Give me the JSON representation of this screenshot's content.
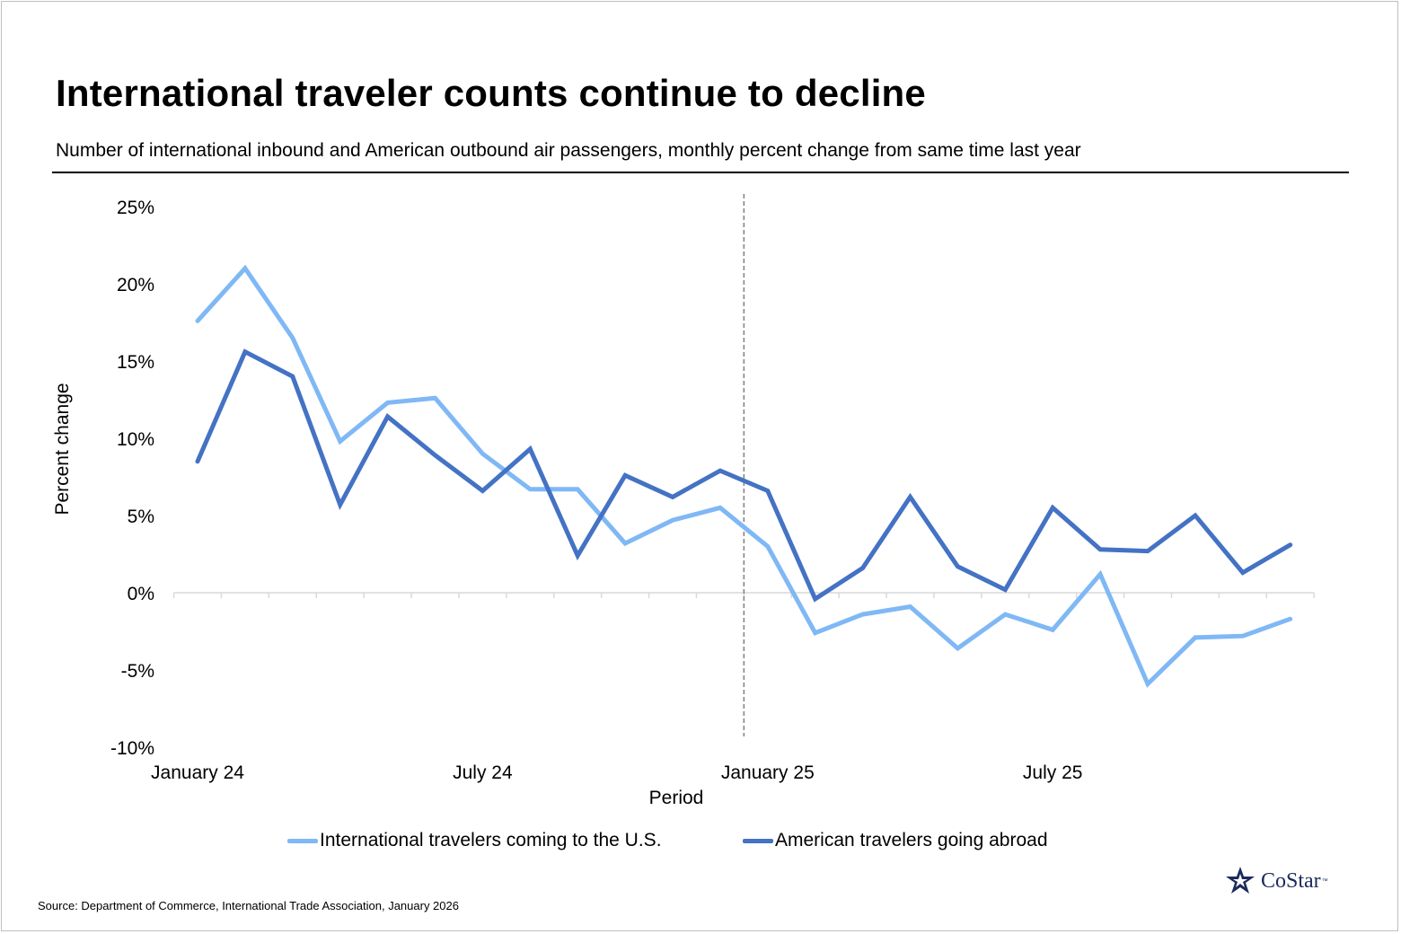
{
  "title": "International traveler counts continue to decline",
  "subtitle": "Number of international inbound and American outbound air passengers, monthly percent change from same time last year",
  "source": "Source: Department of Commerce, International Trade Association, January 2026",
  "logo": {
    "text": "CoStar",
    "tm": "™"
  },
  "colors": {
    "light_series": "#7fb8f5",
    "dark_series": "#4472c4",
    "divider": "#7f7f7f",
    "axis": "#d9d9d9"
  },
  "chart_data": {
    "type": "line",
    "xlabel": "Period",
    "ylabel": "Percent change",
    "ylim": [
      -10,
      25
    ],
    "yticks": [
      "25%",
      "20%",
      "15%",
      "10%",
      "5%",
      "0%",
      "-5%",
      "-10%"
    ],
    "ytick_values": [
      25,
      20,
      15,
      10,
      5,
      0,
      -5,
      -10
    ],
    "x": [
      "Jan 2024",
      "Feb 2024",
      "Mar 2024",
      "Apr 2024",
      "May 2024",
      "Jun 2024",
      "Jul 2024",
      "Aug 2024",
      "Sep 2024",
      "Oct 2024",
      "Nov 2024",
      "Dec 2024",
      "Jan 2025",
      "Feb 2025",
      "Mar 2025",
      "Apr 2025",
      "May 2025",
      "Jun 2025",
      "Jul 2025",
      "Aug 2025",
      "Sep 2025",
      "Oct 2025",
      "Nov 2025",
      "Dec 2025"
    ],
    "xtick_labels": [
      {
        "index": 0,
        "label": "January 24"
      },
      {
        "index": 6,
        "label": "July 24"
      },
      {
        "index": 12,
        "label": "January 25"
      },
      {
        "index": 18,
        "label": "July 25"
      }
    ],
    "divider_after_index": 11,
    "series": [
      {
        "name": "International travelers coming to the U.S.",
        "color": "#7fb8f5",
        "values": [
          17.6,
          21.0,
          16.5,
          9.8,
          12.3,
          12.6,
          9.0,
          6.7,
          6.7,
          3.2,
          4.7,
          5.5,
          3.0,
          -2.6,
          -1.4,
          -0.9,
          -3.6,
          -1.4,
          -2.4,
          1.2,
          -5.9,
          -2.9,
          -2.8,
          -1.7
        ]
      },
      {
        "name": "American travelers going abroad",
        "color": "#4472c4",
        "values": [
          8.5,
          15.6,
          14.0,
          5.7,
          11.4,
          8.9,
          6.6,
          9.3,
          2.4,
          7.6,
          6.2,
          7.9,
          6.6,
          -0.4,
          1.6,
          6.2,
          1.7,
          0.2,
          5.5,
          2.8,
          2.7,
          5.0,
          1.3,
          3.1
        ]
      }
    ],
    "grid": false,
    "legend_position": "bottom"
  }
}
